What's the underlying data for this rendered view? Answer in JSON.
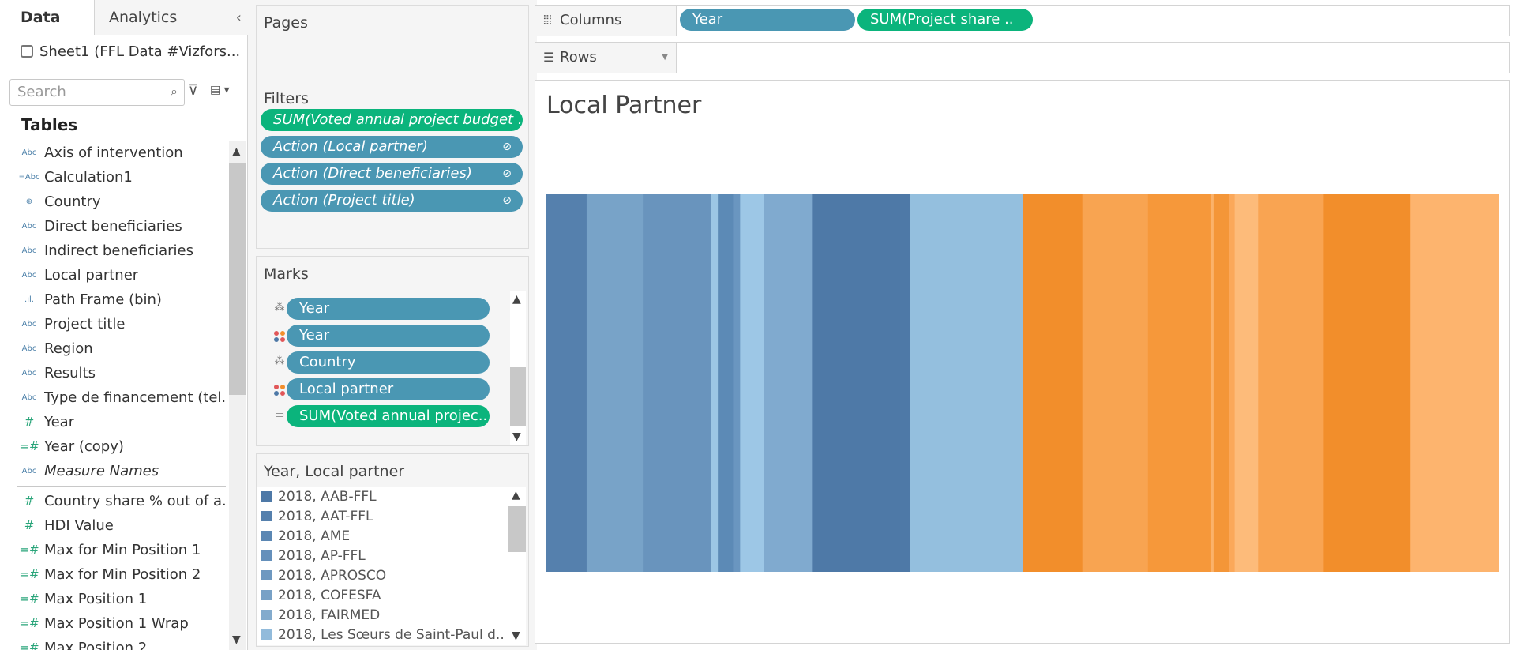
{
  "pane": {
    "tabs": [
      "Data",
      "Analytics"
    ],
    "data_source": "Sheet1 (FFL Data #Vizfors...",
    "search_placeholder": "Search",
    "tables_heading": "Tables",
    "fields": [
      {
        "icon": "Abc",
        "kind": "dim",
        "name": "Axis of intervention"
      },
      {
        "icon": "=Abc",
        "kind": "dim",
        "name": "Calculation1"
      },
      {
        "icon": "⊕",
        "kind": "dim",
        "name": "Country"
      },
      {
        "icon": "Abc",
        "kind": "dim",
        "name": "Direct beneficiaries"
      },
      {
        "icon": "Abc",
        "kind": "dim",
        "name": "Indirect beneficiaries"
      },
      {
        "icon": "Abc",
        "kind": "dim",
        "name": "Local partner"
      },
      {
        "icon": ".ıl.",
        "kind": "dim",
        "name": "Path Frame (bin)"
      },
      {
        "icon": "Abc",
        "kind": "dim",
        "name": "Project title"
      },
      {
        "icon": "Abc",
        "kind": "dim",
        "name": "Region"
      },
      {
        "icon": "Abc",
        "kind": "dim",
        "name": "Results"
      },
      {
        "icon": "Abc",
        "kind": "dim",
        "name": "Type de financement (tel..."
      },
      {
        "icon": "#",
        "kind": "meas",
        "name": "Year"
      },
      {
        "icon": "=#",
        "kind": "meas",
        "name": "Year (copy)"
      },
      {
        "icon": "Abc",
        "kind": "dim",
        "name": "Measure Names",
        "italic": true
      },
      {
        "icon": "#",
        "kind": "meas",
        "name": "Country share % out of a...",
        "sep_before": true
      },
      {
        "icon": "#",
        "kind": "meas",
        "name": "HDI Value"
      },
      {
        "icon": "=#",
        "kind": "meas",
        "name": "Max for Min Position 1"
      },
      {
        "icon": "=#",
        "kind": "meas",
        "name": "Max for Min Position 2"
      },
      {
        "icon": "=#",
        "kind": "meas",
        "name": "Max Position 1"
      },
      {
        "icon": "=#",
        "kind": "meas",
        "name": "Max Position 1 Wrap"
      },
      {
        "icon": "=#",
        "kind": "meas",
        "name": "Max Position 2"
      }
    ]
  },
  "cards": {
    "pages_title": "Pages",
    "filters_title": "Filters",
    "filters": [
      {
        "label": "SUM(Voted annual project budget ..",
        "color": "green",
        "italic": true,
        "linked": false
      },
      {
        "label": "Action (Local partner)",
        "color": "blue",
        "italic": true,
        "linked": true
      },
      {
        "label": "Action (Direct beneficiaries)",
        "color": "blue",
        "italic": true,
        "linked": true
      },
      {
        "label": "Action (Project title)",
        "color": "blue",
        "italic": true,
        "linked": true
      }
    ],
    "marks_title": "Marks",
    "marks": [
      {
        "icon": "detail-icon",
        "label": "Year",
        "color": "blue"
      },
      {
        "icon": "color-icon",
        "label": "Year",
        "color": "blue"
      },
      {
        "icon": "detail-icon",
        "label": "Country",
        "color": "blue"
      },
      {
        "icon": "color-icon",
        "label": "Local partner",
        "color": "blue"
      },
      {
        "icon": "tooltip-icon",
        "label": "SUM(Voted annual projec..",
        "color": "green"
      }
    ],
    "legend_title": "Year, Local partner",
    "legend": [
      {
        "label": "2018, AAB-FFL",
        "color": "#4e79a7"
      },
      {
        "label": "2018, AAT-FFL",
        "color": "#5580ad"
      },
      {
        "label": "2018, AME",
        "color": "#5b87b3"
      },
      {
        "label": "2018, AP-FFL",
        "color": "#6590bb"
      },
      {
        "label": "2018, APROSCO",
        "color": "#6e98c0"
      },
      {
        "label": "2018, COFESFA",
        "color": "#78a1c6"
      },
      {
        "label": "2018, FAIRMED",
        "color": "#83abcd"
      },
      {
        "label": "2018, Les Sœurs de Saint-Paul d..",
        "color": "#92bbdb"
      }
    ]
  },
  "shelves": {
    "columns_label": "Columns",
    "columns_pills": [
      "Year",
      "SUM(Project share .."
    ],
    "rows_label": "Rows"
  },
  "colors": {
    "dimension_pill": "#4a97b3",
    "measure_pill": "#0bb47c"
  },
  "chart_data": {
    "type": "bar",
    "orientation": "horizontal-stacked",
    "title": "Local Partner",
    "xlabel": "",
    "ylabel": "",
    "segments": [
      {
        "value": 3.5,
        "color": "#5580ad"
      },
      {
        "value": 4.8,
        "color": "#78a3c8"
      },
      {
        "value": 5.8,
        "color": "#6994bd"
      },
      {
        "value": 0.6,
        "color": "#9cc6e4"
      },
      {
        "value": 1.3,
        "color": "#5c8ab6"
      },
      {
        "value": 0.6,
        "color": "#6a96c0"
      },
      {
        "value": 2.0,
        "color": "#9dc7e6"
      },
      {
        "value": 4.2,
        "color": "#80aacf"
      },
      {
        "value": 8.3,
        "color": "#4e79a7"
      },
      {
        "value": 9.6,
        "color": "#94bfde"
      },
      {
        "value": 5.1,
        "color": "#f28e2b"
      },
      {
        "value": 5.6,
        "color": "#f8a451"
      },
      {
        "value": 5.4,
        "color": "#f6983a"
      },
      {
        "value": 0.2,
        "color": "#fbb26a"
      },
      {
        "value": 1.3,
        "color": "#f49638"
      },
      {
        "value": 0.5,
        "color": "#fba85a"
      },
      {
        "value": 2.0,
        "color": "#fdbb7a"
      },
      {
        "value": 5.6,
        "color": "#f9a452"
      },
      {
        "value": 7.4,
        "color": "#f28e2b"
      },
      {
        "value": 7.6,
        "color": "#fdb46e"
      }
    ]
  }
}
